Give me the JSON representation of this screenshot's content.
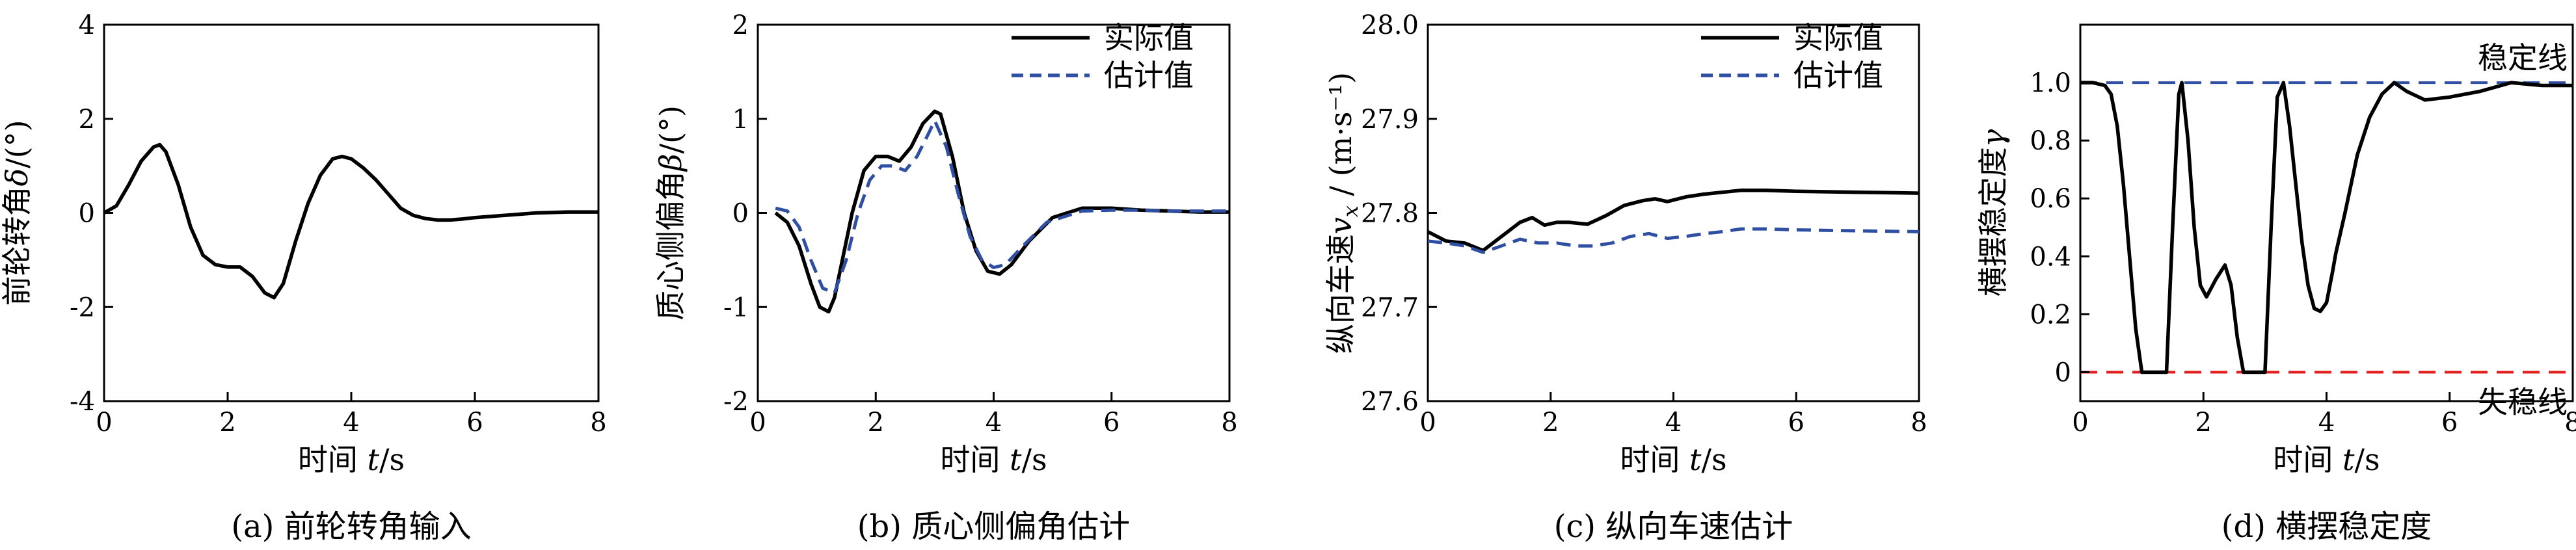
{
  "chart_data": [
    {
      "type": "line",
      "caption": "(a) 前轮转角输入",
      "xlabel": "时间 t/s",
      "ylabel": "前轮转角δ/(°)",
      "xlim": [
        0,
        8
      ],
      "ylim": [
        -4,
        4
      ],
      "xticks": [
        0,
        2,
        4,
        6,
        8
      ],
      "yticks": [
        -4,
        -2,
        0,
        2,
        4
      ],
      "legend": null,
      "grid": false,
      "series": [
        {
          "color": "#000000",
          "dash": "solid",
          "x": [
            0,
            0.2,
            0.4,
            0.6,
            0.8,
            0.9,
            1.0,
            1.2,
            1.4,
            1.6,
            1.8,
            2.0,
            2.2,
            2.4,
            2.6,
            2.75,
            2.9,
            3.1,
            3.3,
            3.5,
            3.7,
            3.85,
            4.0,
            4.2,
            4.4,
            4.6,
            4.8,
            5.0,
            5.2,
            5.4,
            5.6,
            5.8,
            6.0,
            6.5,
            7.0,
            7.5,
            8.0
          ],
          "y": [
            0,
            0.15,
            0.6,
            1.1,
            1.4,
            1.45,
            1.3,
            0.6,
            -0.3,
            -0.9,
            -1.1,
            -1.15,
            -1.15,
            -1.35,
            -1.7,
            -1.8,
            -1.5,
            -0.6,
            0.2,
            0.8,
            1.15,
            1.2,
            1.15,
            0.95,
            0.7,
            0.4,
            0.1,
            -0.05,
            -0.12,
            -0.15,
            -0.15,
            -0.13,
            -0.1,
            -0.05,
            0,
            0.02,
            0.02
          ]
        }
      ]
    },
    {
      "type": "line",
      "caption": "(b) 质心侧偏角估计",
      "xlabel": "时间 t/s",
      "ylabel": "质心侧偏角β/(°)",
      "xlim": [
        0,
        8
      ],
      "ylim": [
        -2,
        2
      ],
      "xticks": [
        0,
        2,
        4,
        6,
        8
      ],
      "yticks": [
        -2,
        -1,
        0,
        1,
        2
      ],
      "legend": "top-right",
      "grid": false,
      "series": [
        {
          "name": "实际值",
          "color": "#000000",
          "dash": "solid",
          "x": [
            0.3,
            0.5,
            0.7,
            0.9,
            1.05,
            1.2,
            1.3,
            1.4,
            1.6,
            1.8,
            2.0,
            2.2,
            2.4,
            2.6,
            2.8,
            3.0,
            3.1,
            3.3,
            3.5,
            3.7,
            3.9,
            4.1,
            4.3,
            4.6,
            5.0,
            5.5,
            6.0,
            6.5,
            7.0,
            7.5,
            8.0
          ],
          "y": [
            0,
            -0.1,
            -0.35,
            -0.75,
            -1.0,
            -1.05,
            -0.9,
            -0.6,
            0.0,
            0.45,
            0.6,
            0.6,
            0.55,
            0.7,
            0.95,
            1.08,
            1.05,
            0.6,
            0.0,
            -0.4,
            -0.62,
            -0.65,
            -0.55,
            -0.3,
            -0.05,
            0.05,
            0.05,
            0.03,
            0.02,
            0.01,
            0.01
          ]
        },
        {
          "name": "估计值",
          "color": "#2f4fa2",
          "dash": "dashed",
          "x": [
            0.3,
            0.5,
            0.7,
            0.9,
            1.1,
            1.3,
            1.5,
            1.7,
            1.9,
            2.1,
            2.3,
            2.5,
            2.7,
            2.9,
            3.0,
            3.2,
            3.4,
            3.6,
            3.8,
            4.0,
            4.2,
            4.5,
            4.9,
            5.5,
            6.0,
            6.5,
            7.0,
            7.5,
            8.0
          ],
          "y": [
            0.05,
            0.02,
            -0.15,
            -0.5,
            -0.8,
            -0.85,
            -0.5,
            0.0,
            0.35,
            0.5,
            0.5,
            0.45,
            0.6,
            0.85,
            0.98,
            0.7,
            0.2,
            -0.25,
            -0.5,
            -0.58,
            -0.55,
            -0.35,
            -0.1,
            0.02,
            0.03,
            0.03,
            0.02,
            0.02,
            0.02
          ]
        }
      ]
    },
    {
      "type": "line",
      "caption": "(c) 纵向车速估计",
      "xlabel": "时间 t/s",
      "ylabel": "纵向车速v_x / (m·s⁻¹)",
      "xlim": [
        0,
        8
      ],
      "ylim": [
        27.6,
        28.0
      ],
      "xticks": [
        0,
        2,
        4,
        6,
        8
      ],
      "yticks": [
        27.6,
        27.7,
        27.8,
        27.9,
        28.0
      ],
      "legend": "top-right",
      "grid": false,
      "series": [
        {
          "name": "实际值",
          "color": "#000000",
          "dash": "solid",
          "x": [
            0,
            0.3,
            0.6,
            0.9,
            1.2,
            1.5,
            1.7,
            1.9,
            2.1,
            2.3,
            2.6,
            2.9,
            3.2,
            3.5,
            3.7,
            3.9,
            4.2,
            4.5,
            4.8,
            5.1,
            5.5,
            6.0,
            7.0,
            8.0
          ],
          "y": [
            27.78,
            27.77,
            27.768,
            27.76,
            27.775,
            27.79,
            27.795,
            27.787,
            27.79,
            27.79,
            27.788,
            27.797,
            27.808,
            27.813,
            27.815,
            27.812,
            27.817,
            27.82,
            27.822,
            27.824,
            27.824,
            27.823,
            27.822,
            27.821
          ]
        },
        {
          "name": "估计值",
          "color": "#2f4fa2",
          "dash": "dashed",
          "x": [
            0,
            0.3,
            0.6,
            0.9,
            1.2,
            1.5,
            1.8,
            2.1,
            2.4,
            2.7,
            3.0,
            3.3,
            3.6,
            3.9,
            4.2,
            4.5,
            4.8,
            5.1,
            5.5,
            6.0,
            7.0,
            8.0
          ],
          "y": [
            27.77,
            27.768,
            27.765,
            27.758,
            27.765,
            27.772,
            27.768,
            27.768,
            27.765,
            27.765,
            27.768,
            27.775,
            27.778,
            27.773,
            27.775,
            27.778,
            27.78,
            27.783,
            27.783,
            27.782,
            27.781,
            27.78
          ]
        }
      ]
    },
    {
      "type": "line",
      "caption": "(d) 横摆稳定度",
      "xlabel": "时间 t/s",
      "ylabel": "横摆稳定度γ",
      "xlim": [
        0,
        8
      ],
      "ylim": [
        -0.1,
        1.2
      ],
      "xticks": [
        0,
        2,
        4,
        6,
        8
      ],
      "yticks": [
        0,
        0.2,
        0.4,
        0.6,
        0.8,
        1.0
      ],
      "legend": null,
      "grid": false,
      "reference_lines": [
        {
          "label": "稳定线",
          "y": 1.0,
          "color": "#2f4fa2",
          "dash": "dashed"
        },
        {
          "label": "失稳线",
          "y": 0.0,
          "color": "#e02020",
          "dash": "dashed"
        }
      ],
      "series": [
        {
          "color": "#000000",
          "dash": "solid",
          "x": [
            0,
            0.2,
            0.4,
            0.5,
            0.6,
            0.7,
            0.8,
            0.9,
            1.0,
            1.1,
            1.2,
            1.4,
            1.5,
            1.6,
            1.65,
            1.75,
            1.85,
            1.95,
            2.05,
            2.2,
            2.35,
            2.45,
            2.55,
            2.65,
            2.75,
            2.85,
            3.0,
            3.1,
            3.2,
            3.3,
            3.4,
            3.5,
            3.6,
            3.7,
            3.8,
            3.9,
            4.0,
            4.1,
            4.15,
            4.3,
            4.5,
            4.7,
            4.9,
            5.1,
            5.3,
            5.6,
            6.0,
            6.5,
            7.0,
            7.5,
            8.0
          ],
          "y": [
            1.0,
            1.0,
            0.99,
            0.96,
            0.85,
            0.65,
            0.4,
            0.15,
            0.0,
            0.0,
            0.0,
            0.0,
            0.5,
            0.96,
            1.0,
            0.8,
            0.5,
            0.3,
            0.26,
            0.32,
            0.37,
            0.3,
            0.12,
            0.0,
            0.0,
            0.0,
            0.0,
            0.5,
            0.95,
            1.0,
            0.85,
            0.65,
            0.45,
            0.3,
            0.22,
            0.21,
            0.24,
            0.35,
            0.41,
            0.55,
            0.75,
            0.88,
            0.96,
            1.0,
            0.97,
            0.94,
            0.95,
            0.97,
            1.0,
            0.99,
            0.99
          ]
        }
      ]
    }
  ]
}
